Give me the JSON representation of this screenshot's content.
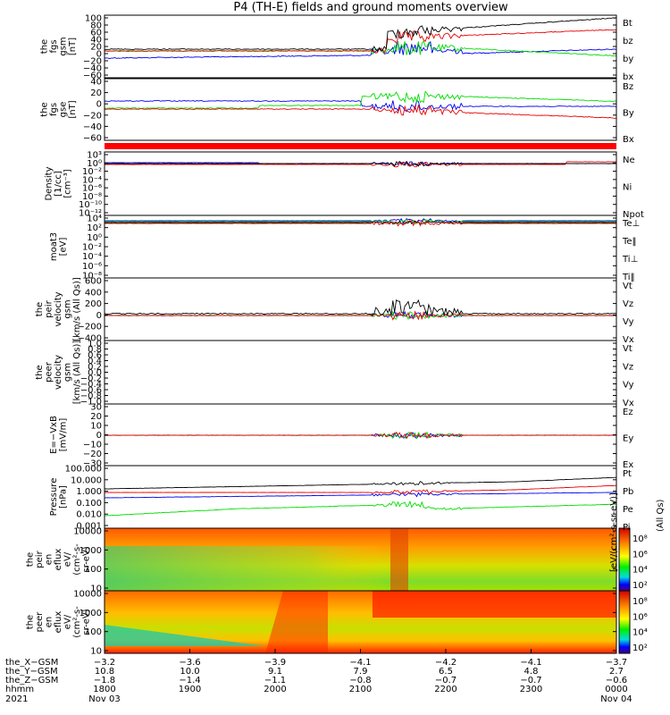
{
  "title": "P4 (TH-E) fields and ground moments overview",
  "colors": {
    "black": "#000000",
    "red": "#e60000",
    "green": "#00dd00",
    "blue": "#0000ee"
  },
  "chart_data": [
    {
      "type": "line",
      "panel": "fgs-gsm",
      "ylabel": [
        "the",
        "fgs",
        "gsm",
        "[nT]"
      ],
      "yticks": [
        "100",
        "80",
        "60",
        "40",
        "20",
        "0",
        "−20",
        "−40",
        "−60"
      ],
      "ylim": [
        -60,
        100
      ],
      "series": [
        {
          "name": "Bt",
          "color": "#000000"
        },
        {
          "name": "bz",
          "color": "#e60000"
        },
        {
          "name": "by",
          "color": "#00dd00"
        },
        {
          "name": "bx",
          "color": "#0000ee"
        }
      ]
    },
    {
      "type": "line",
      "panel": "fgs-gse",
      "ylabel": [
        "the",
        "fgs",
        "gse",
        "[nT]"
      ],
      "yticks": [
        "40",
        "20",
        "0",
        "−20",
        "−40",
        "−60"
      ],
      "ylim": [
        -70,
        45
      ],
      "series": [
        {
          "name": "Bz",
          "color": "#e60000"
        },
        {
          "name": "By",
          "color": "#00dd00"
        },
        {
          "name": "Bx",
          "color": "#0000ee"
        }
      ]
    },
    {
      "type": "line",
      "panel": "density",
      "ylabel": [
        "Density",
        "[1/cc]",
        "[cm⁻³]"
      ],
      "yticks": [
        "10³",
        "10⁰",
        "10⁻²",
        "10⁻⁴",
        "10⁻⁶",
        "10⁻⁸",
        "10⁻¹⁰",
        "10⁻¹²"
      ],
      "series": [
        {
          "name": "Ne",
          "color": "#e60000"
        },
        {
          "name": "Ni",
          "color": "#000000"
        },
        {
          "name": "Npot",
          "color": "#0000ee"
        }
      ]
    },
    {
      "type": "line",
      "panel": "temperature",
      "ylabel": [
        "moat3",
        "[eV]"
      ],
      "yticks": [
        "10⁴",
        "10²",
        "10⁰",
        "10⁻²",
        "10⁻⁴",
        "10⁻⁶",
        "10⁻⁸"
      ],
      "series": [
        {
          "name": "Te⊥",
          "color": "#e60000"
        },
        {
          "name": "Te‖",
          "color": "#000000"
        },
        {
          "name": "Ti⊥",
          "color": "#0000ee"
        },
        {
          "name": "Ti‖",
          "color": "#00dd00"
        }
      ]
    },
    {
      "type": "line",
      "panel": "peir-velocity",
      "ylabel": [
        "the",
        "peir",
        "velocity",
        "gsm",
        "[km/s (All Qs)]"
      ],
      "yticks": [
        "600",
        "400",
        "200",
        "0",
        "−200",
        "−400"
      ],
      "ylim": [
        -400,
        620
      ],
      "series": [
        {
          "name": "Vt",
          "color": "#000000"
        },
        {
          "name": "Vz",
          "color": "#e60000"
        },
        {
          "name": "Vy",
          "color": "#00dd00"
        },
        {
          "name": "Vx",
          "color": "#0000ee"
        }
      ]
    },
    {
      "type": "line",
      "panel": "peer-velocity",
      "ylabel": [
        "the",
        "peer",
        "velocity",
        "gsm",
        "[km/s (All Qs)]"
      ],
      "yticks": [
        "1.0",
        "0.8",
        "0.6",
        "0.4",
        "0.2",
        "0.0",
        "−0.2",
        "−0.4",
        "−0.6",
        "−0.8",
        "−1.0"
      ],
      "ylim": [
        -1,
        1
      ],
      "series": [
        {
          "name": "Vt",
          "color": "#000000"
        },
        {
          "name": "Vz",
          "color": "#e60000"
        },
        {
          "name": "Vy",
          "color": "#00dd00"
        },
        {
          "name": "Vx",
          "color": "#0000ee"
        }
      ]
    },
    {
      "type": "line",
      "panel": "efield",
      "ylabel": [
        "E=−VxB",
        "[mV/m]"
      ],
      "yticks": [
        "30",
        "20",
        "10",
        "0",
        "−10",
        "−20",
        "−30"
      ],
      "ylim": [
        -30,
        30
      ],
      "series": [
        {
          "name": "Ez",
          "color": "#e60000"
        },
        {
          "name": "Ey",
          "color": "#00dd00"
        },
        {
          "name": "Ex",
          "color": "#0000ee"
        }
      ]
    },
    {
      "type": "line",
      "panel": "pressure",
      "ylabel": [
        "Pressure",
        "[nPa]"
      ],
      "yticks": [
        "100.000",
        "10.000",
        "1.000",
        "0.100",
        "0.010",
        "0.001"
      ],
      "series": [
        {
          "name": "Pt",
          "color": "#000000"
        },
        {
          "name": "Pb",
          "color": "#e60000"
        },
        {
          "name": "Pe",
          "color": "#00dd00"
        },
        {
          "name": "Pi",
          "color": "#0000ee"
        }
      ]
    },
    {
      "type": "heatmap",
      "panel": "peir-en-eflux",
      "ylabel": [
        "the",
        "peir",
        "en",
        "eflux",
        "eV/",
        "(cm²-s-",
        "sr-eV)"
      ],
      "yticks": [
        "10000",
        "1000",
        "100",
        "10"
      ],
      "colorbar": {
        "ticks": [
          "10⁸",
          "10⁶",
          "10⁴",
          "10²"
        ],
        "label": "[eV/(cm²-s-sr-eV)]",
        "extra": "(All Qs)"
      }
    },
    {
      "type": "heatmap",
      "panel": "peer-en-eflux",
      "ylabel": [
        "the",
        "peer",
        "en",
        "eflux",
        "eV/",
        "(cm²-s-",
        "sr-eV)"
      ],
      "yticks": [
        "10000",
        "1000",
        "100",
        "10"
      ],
      "colorbar": {
        "ticks": [
          "10⁸",
          "10⁶",
          "10⁴",
          "10²"
        ]
      }
    }
  ],
  "xaxis": {
    "rows": [
      {
        "label": "the_X−GSM",
        "values": [
          "−3.2",
          "−3.6",
          "−3.9",
          "−4.1",
          "−4.2",
          "−4.1",
          "−3.7"
        ]
      },
      {
        "label": "the_Y−GSM",
        "values": [
          "10.8",
          "10.0",
          "9.1",
          "7.9",
          "6.5",
          "4.8",
          "2.7"
        ]
      },
      {
        "label": "the_Z−GSM",
        "values": [
          "−1.8",
          "−1.4",
          "−1.1",
          "−0.8",
          "−0.7",
          "−0.7",
          "−0.6"
        ]
      },
      {
        "label": "hhmm",
        "values": [
          "1800",
          "1900",
          "2000",
          "2100",
          "2200",
          "2300",
          "0000"
        ]
      }
    ],
    "year": "2021",
    "date_start": "Nov 03",
    "date_end": "Nov 04"
  }
}
